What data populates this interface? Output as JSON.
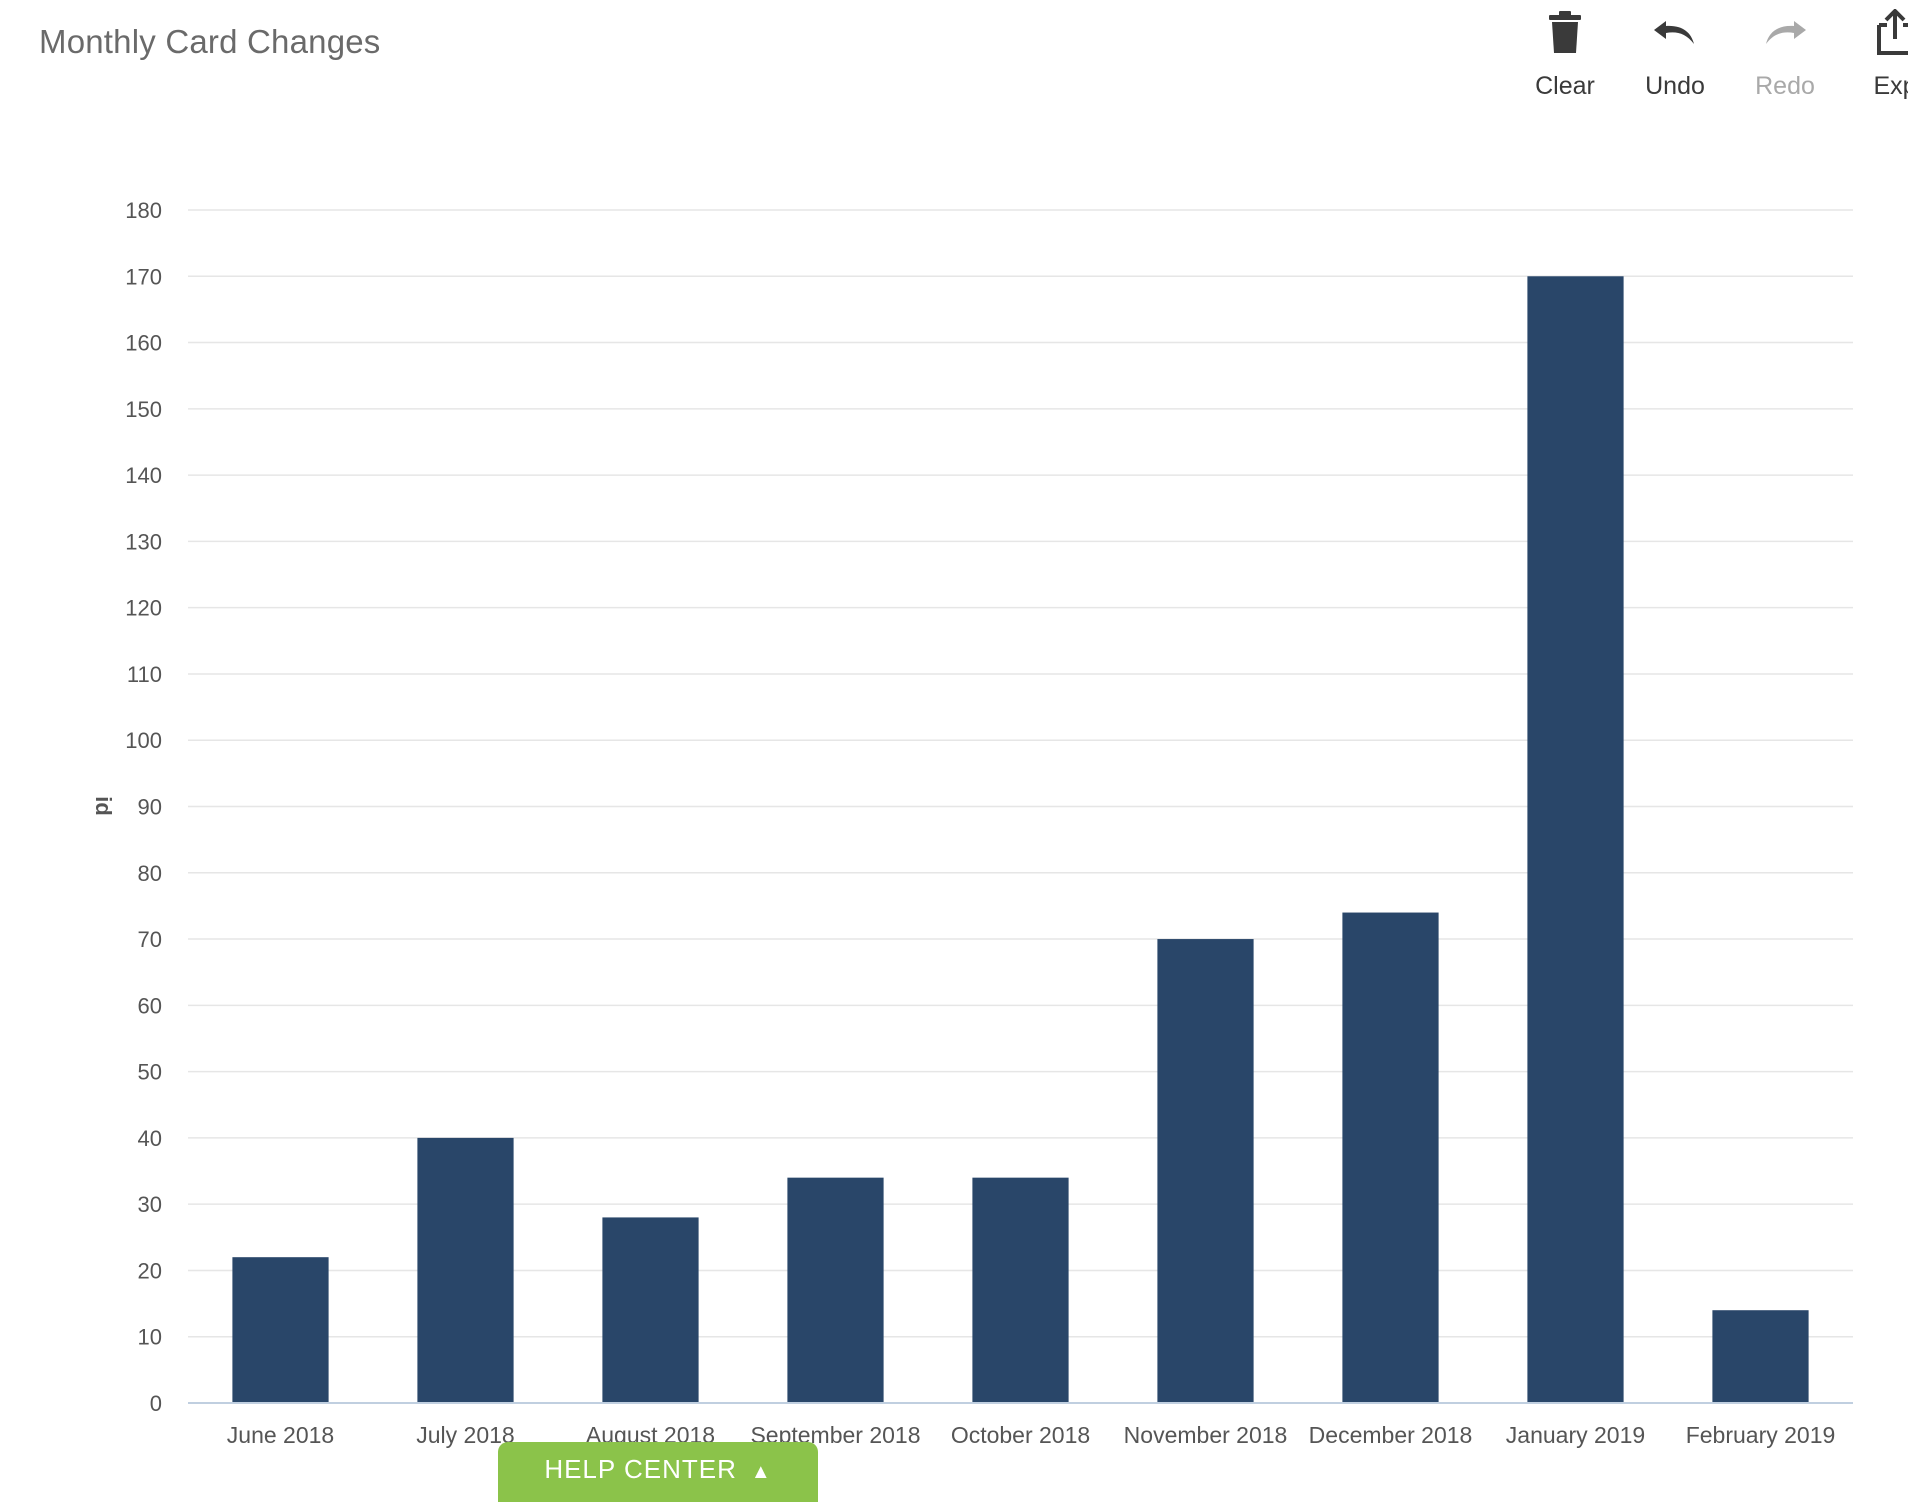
{
  "header": {
    "title": "Monthly Card Changes"
  },
  "toolbar": {
    "clear_label": "Clear",
    "undo_label": "Undo",
    "redo_label": "Redo",
    "export_label": "Exp"
  },
  "help": {
    "label": "HELP CENTER"
  },
  "colors": {
    "bar": "#294669",
    "grid": "#e6e6e6",
    "axis": "#c0cfe0",
    "help_tab": "#8bc34a"
  },
  "chart_data": {
    "type": "bar",
    "title": "Monthly Card Changes",
    "xlabel": "",
    "ylabel": "id",
    "ylim": [
      0,
      180
    ],
    "yticks": [
      0,
      10,
      20,
      30,
      40,
      50,
      60,
      70,
      80,
      90,
      100,
      110,
      120,
      130,
      140,
      150,
      160,
      170,
      180
    ],
    "grid": true,
    "categories": [
      "June 2018",
      "July 2018",
      "August 2018",
      "September 2018",
      "October 2018",
      "November 2018",
      "December 2018",
      "January 2019",
      "February 2019"
    ],
    "values": [
      22,
      40,
      28,
      34,
      34,
      70,
      74,
      170,
      14
    ]
  }
}
